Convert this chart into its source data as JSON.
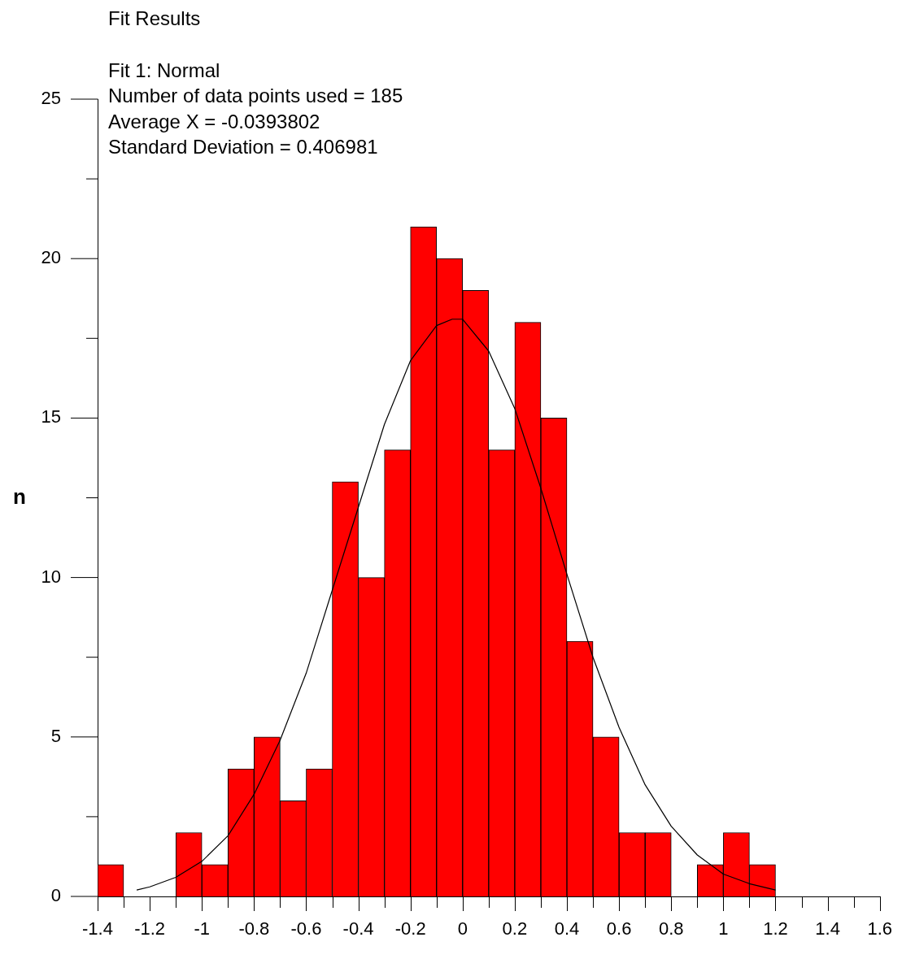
{
  "chart_data": {
    "type": "histogram",
    "title": "Fit Results",
    "ylabel": "n",
    "annotations": [
      "Fit 1: Normal",
      "Number of data points used = 185",
      "Average X = -0.0393802",
      "Standard Deviation = 0.406981"
    ],
    "bins": [
      -1.4,
      -1.3,
      -1.2,
      -1.1,
      -1.0,
      -0.9,
      -0.8,
      -0.7,
      -0.6,
      -0.5,
      -0.4,
      -0.3,
      -0.2,
      -0.1,
      0,
      0.1,
      0.2,
      0.3,
      0.4,
      0.5,
      0.6,
      0.7,
      0.8,
      0.9,
      1.0,
      1.1,
      1.2
    ],
    "values": [
      1,
      0,
      0,
      2,
      1,
      4,
      5,
      3,
      4,
      13,
      10,
      14,
      21,
      20,
      19,
      14,
      18,
      15,
      8,
      5,
      2,
      2,
      0,
      1,
      2,
      1
    ],
    "color": "#ff0000",
    "series": [
      {
        "type": "line",
        "color": "#000000",
        "x": [
          -1.25,
          -1.2,
          -1.1,
          -1.0,
          -0.9,
          -0.8,
          -0.7,
          -0.6,
          -0.5,
          -0.4,
          -0.3,
          -0.2,
          -0.1,
          -0.04,
          0,
          0.1,
          0.2,
          0.3,
          0.4,
          0.5,
          0.6,
          0.7,
          0.8,
          0.9,
          1.0,
          1.1,
          1.2
        ],
        "values": [
          0.2,
          0.3,
          0.6,
          1.1,
          1.9,
          3.2,
          4.9,
          7.0,
          9.6,
          12.2,
          14.8,
          16.8,
          17.9,
          18.1,
          18.1,
          17.1,
          15.3,
          12.8,
          10.1,
          7.5,
          5.3,
          3.5,
          2.2,
          1.3,
          0.7,
          0.4,
          0.2
        ]
      }
    ],
    "xlim": [
      -1.4,
      1.6
    ],
    "xticks": [
      -1.4,
      {
        "value": -1.3,
        "label": null
      },
      -1.2,
      {
        "value": -1.1,
        "label": null
      },
      -1,
      {
        "value": -0.9,
        "label": null
      },
      -0.8,
      {
        "value": -0.7,
        "label": null
      },
      -0.6,
      {
        "value": -0.5,
        "label": null
      },
      -0.4,
      {
        "value": -0.3,
        "label": null
      },
      -0.2,
      {
        "value": -0.1,
        "label": null
      },
      0,
      {
        "value": 0.1,
        "label": null
      },
      0.2,
      {
        "value": 0.3,
        "label": null
      },
      0.4,
      {
        "value": 0.5,
        "label": null
      },
      0.6,
      {
        "value": 0.7,
        "label": null
      },
      0.8,
      {
        "value": 0.9,
        "label": null
      },
      1,
      {
        "value": 1.1,
        "label": null
      },
      1.2,
      {
        "value": 1.3,
        "label": null
      },
      1.4,
      {
        "value": 1.5,
        "label": null
      },
      1.6
    ],
    "ylim": [
      0,
      25
    ],
    "yticks": [
      0,
      {
        "value": 2.5,
        "label": null
      },
      5,
      {
        "value": 7.5,
        "label": null
      },
      10,
      {
        "value": 12.5,
        "label": null
      },
      15,
      {
        "value": 17.5,
        "label": null
      },
      20,
      {
        "value": 22.5,
        "label": null
      },
      25
    ],
    "grid": false,
    "legend": false
  }
}
